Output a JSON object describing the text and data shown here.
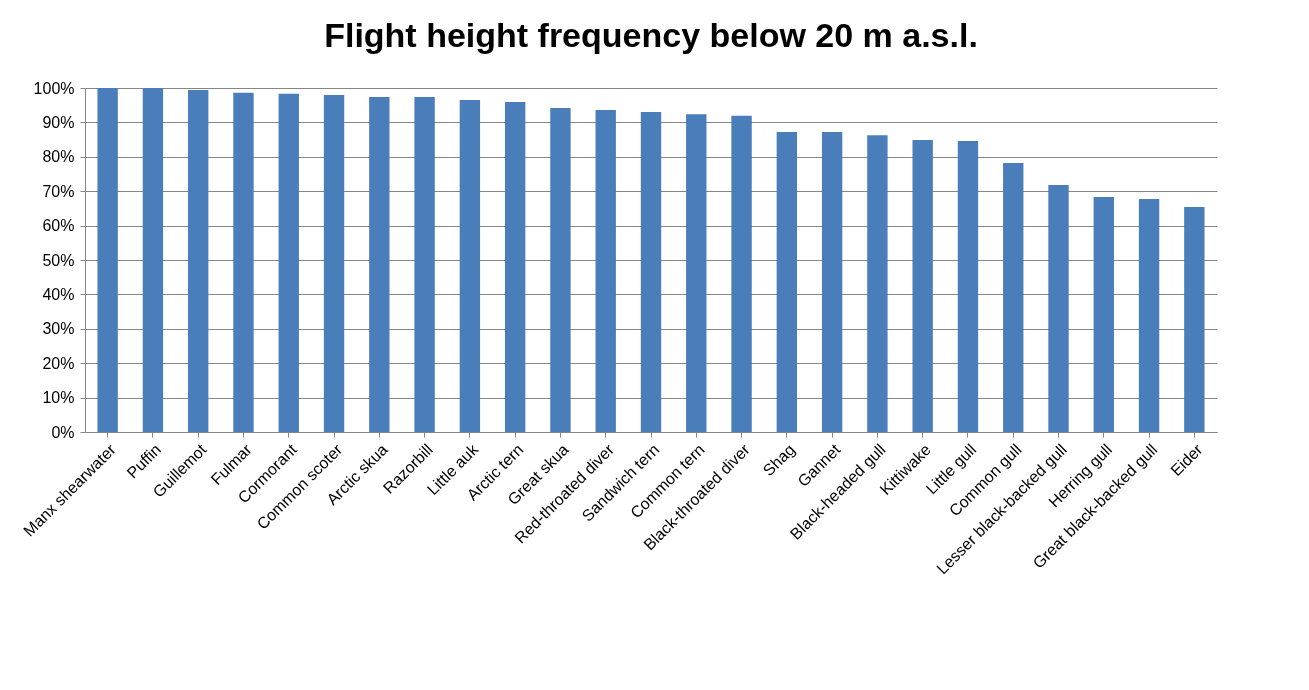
{
  "chart_data": {
    "type": "bar",
    "title": "Flight height frequency below 20 m a.s.l.",
    "categories": [
      "Manx shearwater",
      "Puffin",
      "Guillemot",
      "Fulmar",
      "Cormorant",
      "Common scoter",
      "Arctic skua",
      "Razorbill",
      "Little auk",
      "Arctic tern",
      "Great skua",
      "Red-throated diver",
      "Sandwich tern",
      "Common tern",
      "Black-throated diver",
      "Shag",
      "Gannet",
      "Black-headed gull",
      "Kittiwake",
      "Little gull",
      "Common gull",
      "Lesser black-backed gull",
      "Herring gull",
      "Great black-backed gull",
      "Eider"
    ],
    "values": [
      100,
      100,
      99.4,
      98.6,
      98.3,
      98,
      97.4,
      97.4,
      96.5,
      95.9,
      94.2,
      93.6,
      93,
      92.4,
      91.9,
      87.2,
      87.2,
      86.3,
      84.9,
      84.6,
      78.2,
      71.8,
      68.3,
      67.7,
      65.4
    ],
    "color": "#4a7ebb",
    "ylim": [
      0,
      100
    ],
    "yticks": [
      {
        "value": 0,
        "label": "0%"
      },
      {
        "value": 10,
        "label": "10%"
      },
      {
        "value": 20,
        "label": "20%"
      },
      {
        "value": 30,
        "label": "30%"
      },
      {
        "value": 40,
        "label": "40%"
      },
      {
        "value": 50,
        "label": "50%"
      },
      {
        "value": 60,
        "label": "60%"
      },
      {
        "value": 70,
        "label": "70%"
      },
      {
        "value": 80,
        "label": "80%"
      },
      {
        "value": 90,
        "label": "90%"
      },
      {
        "value": 100,
        "label": "100%"
      }
    ],
    "grid": "y"
  }
}
